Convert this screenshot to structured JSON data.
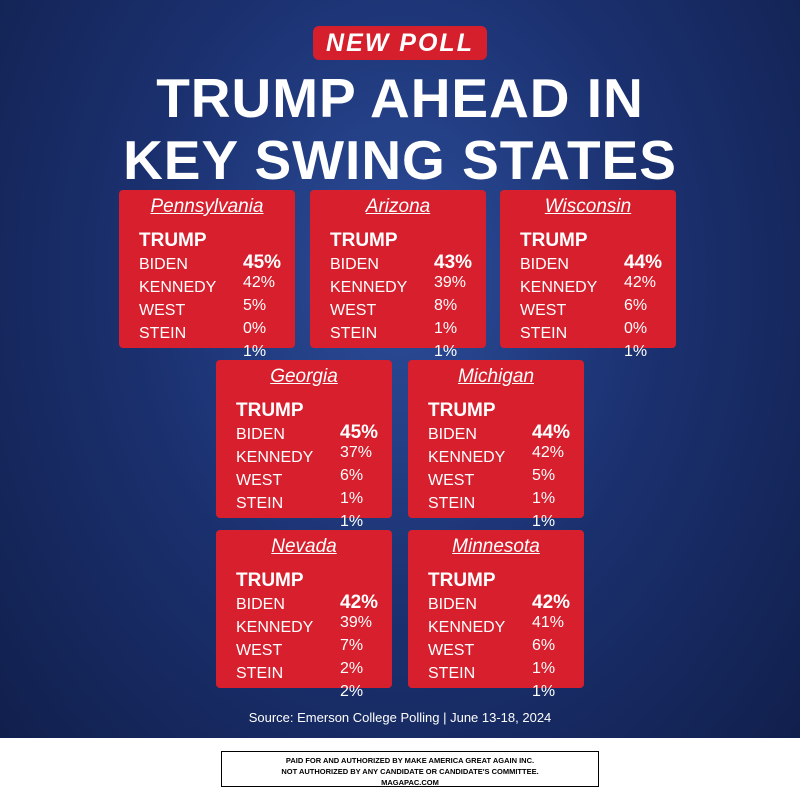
{
  "badge": "NEW POLL",
  "title": [
    "TRUMP AHEAD IN",
    "KEY SWING STATES"
  ],
  "states": [
    {
      "name": "Pennsylvania",
      "rows": [
        [
          "TRUMP",
          "45%"
        ],
        [
          "BIDEN",
          "42%"
        ],
        [
          "KENNEDY",
          "5%"
        ],
        [
          "WEST",
          "0%"
        ],
        [
          "STEIN",
          "1%"
        ]
      ]
    },
    {
      "name": "Arizona",
      "rows": [
        [
          "TRUMP",
          "43%"
        ],
        [
          "BIDEN",
          "39%"
        ],
        [
          "KENNEDY",
          "8%"
        ],
        [
          "WEST",
          "1%"
        ],
        [
          "STEIN",
          "1%"
        ]
      ]
    },
    {
      "name": "Wisconsin",
      "rows": [
        [
          "TRUMP",
          "44%"
        ],
        [
          "BIDEN",
          "42%"
        ],
        [
          "KENNEDY",
          "6%"
        ],
        [
          "WEST",
          "0%"
        ],
        [
          "STEIN",
          "1%"
        ]
      ]
    },
    {
      "name": "Georgia",
      "rows": [
        [
          "TRUMP",
          "45%"
        ],
        [
          "BIDEN",
          "37%"
        ],
        [
          "KENNEDY",
          "6%"
        ],
        [
          "WEST",
          "1%"
        ],
        [
          "STEIN",
          "1%"
        ]
      ]
    },
    {
      "name": "Michigan",
      "rows": [
        [
          "TRUMP",
          "44%"
        ],
        [
          "BIDEN",
          "42%"
        ],
        [
          "KENNEDY",
          "5%"
        ],
        [
          "WEST",
          "1%"
        ],
        [
          "STEIN",
          "1%"
        ]
      ]
    },
    {
      "name": "Nevada",
      "rows": [
        [
          "TRUMP",
          "42%"
        ],
        [
          "BIDEN",
          "39%"
        ],
        [
          "KENNEDY",
          "7%"
        ],
        [
          "WEST",
          "2%"
        ],
        [
          "STEIN",
          "2%"
        ]
      ]
    },
    {
      "name": "Minnesota",
      "rows": [
        [
          "TRUMP",
          "42%"
        ],
        [
          "BIDEN",
          "41%"
        ],
        [
          "KENNEDY",
          "6%"
        ],
        [
          "WEST",
          "1%"
        ],
        [
          "STEIN",
          "1%"
        ]
      ]
    }
  ],
  "source": "Source: Emerson College Polling | June 13-18, 2024",
  "disclaimer": [
    "PAID FOR AND AUTHORIZED BY MAKE AMERICA GREAT AGAIN INC.",
    "NOT AUTHORIZED BY ANY CANDIDATE OR CANDIDATE'S COMMITTEE.",
    "MAGAPAC.COM"
  ]
}
